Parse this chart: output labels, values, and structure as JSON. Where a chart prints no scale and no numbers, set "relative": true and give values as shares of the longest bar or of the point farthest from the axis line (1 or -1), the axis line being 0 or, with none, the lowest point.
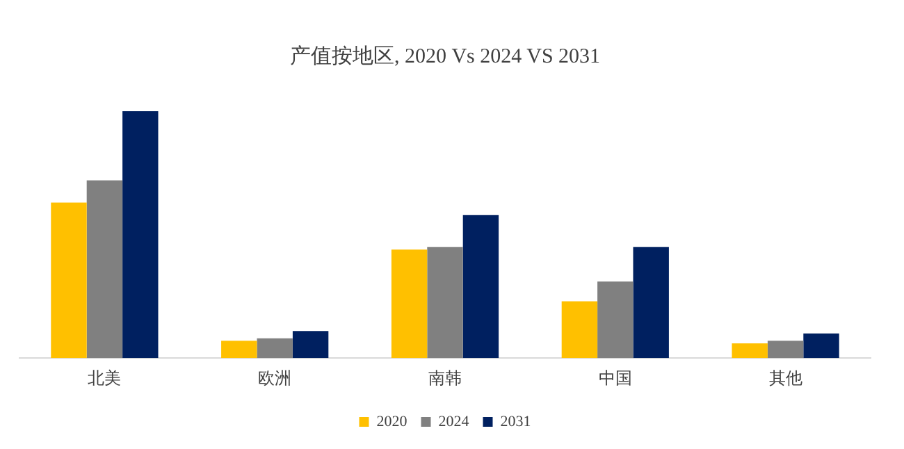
{
  "chart_data": {
    "type": "bar",
    "title": "产值按地区, 2020 Vs 2024 VS 2031",
    "relative": true,
    "categories": [
      "北美",
      "欧洲",
      "南韩",
      "中国",
      "其他"
    ],
    "series": [
      {
        "name": "2020",
        "color": "#ffc000",
        "values": [
          0.63,
          0.07,
          0.44,
          0.23,
          0.06
        ]
      },
      {
        "name": "2024",
        "color": "#808080",
        "values": [
          0.72,
          0.08,
          0.45,
          0.31,
          0.07
        ]
      },
      {
        "name": "2031",
        "color": "#002060",
        "values": [
          1,
          0.11,
          0.58,
          0.45,
          0.1
        ]
      }
    ],
    "legend": "bottom",
    "grid": false
  }
}
